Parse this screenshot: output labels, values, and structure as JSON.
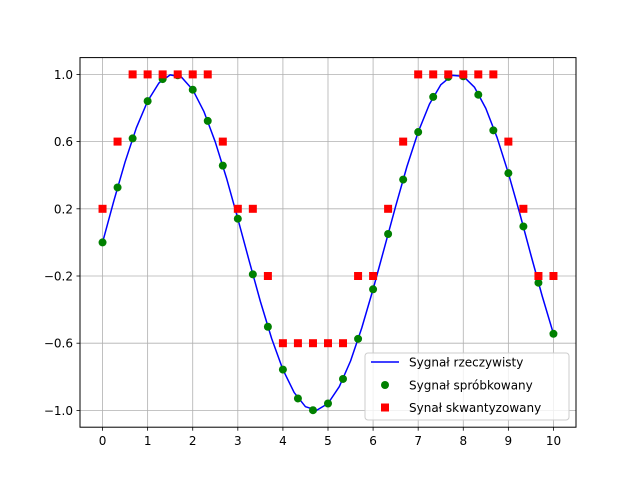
{
  "colors": {
    "line": "#0000ff",
    "sampled": "#008000",
    "quantized": "#ff0000",
    "grid": "#b0b0b0",
    "axes": "#000000"
  },
  "chart_data": {
    "type": "line",
    "xlim": [
      -0.5,
      10.5
    ],
    "ylim": [
      -1.1,
      1.1
    ],
    "xticks": [
      0,
      1,
      2,
      3,
      4,
      5,
      6,
      7,
      8,
      9,
      10
    ],
    "xtick_labels": [
      "0",
      "1",
      "2",
      "3",
      "4",
      "5",
      "6",
      "7",
      "8",
      "9",
      "10"
    ],
    "yticks": [
      1.0,
      0.6,
      0.2,
      -0.2,
      -0.6,
      -1.0
    ],
    "ytick_labels": [
      "1.0",
      "0.6",
      "0.2",
      "−0.2",
      "−0.6",
      "−1.0"
    ],
    "grid": true,
    "legend_position": "lower-right",
    "series": [
      {
        "name": "Sygnał rzeczywisty",
        "kind": "line",
        "x": [
          0,
          0.25,
          0.5,
          0.75,
          1,
          1.25,
          1.5,
          1.75,
          2,
          2.25,
          2.5,
          2.75,
          3,
          3.25,
          3.5,
          3.75,
          4,
          4.25,
          4.5,
          4.75,
          5,
          5.25,
          5.5,
          5.75,
          6,
          6.25,
          6.5,
          6.75,
          7,
          7.25,
          7.5,
          7.75,
          8,
          8.25,
          8.5,
          8.75,
          9,
          9.25,
          9.5,
          9.75,
          10
        ],
        "y": [
          0,
          0.247,
          0.479,
          0.682,
          0.841,
          0.949,
          0.997,
          0.984,
          0.909,
          0.778,
          0.598,
          0.382,
          0.141,
          -0.108,
          -0.351,
          -0.572,
          -0.757,
          -0.894,
          -0.978,
          -0.999,
          -0.959,
          -0.859,
          -0.706,
          -0.508,
          -0.279,
          -0.033,
          0.215,
          0.451,
          0.657,
          0.823,
          0.938,
          0.994,
          0.989,
          0.923,
          0.798,
          0.624,
          0.412,
          0.175,
          -0.075,
          -0.319,
          -0.544
        ]
      },
      {
        "name": "Sygnał spróbkowany",
        "kind": "markers",
        "marker": "circle",
        "x": [
          0,
          0.333,
          0.667,
          1,
          1.333,
          1.667,
          2,
          2.333,
          2.667,
          3,
          3.333,
          3.667,
          4,
          4.333,
          4.667,
          5,
          5.333,
          5.667,
          6,
          6.333,
          6.667,
          7,
          7.333,
          7.667,
          8,
          8.333,
          8.667,
          9,
          9.333,
          9.667,
          10
        ],
        "y": [
          0,
          0.327,
          0.619,
          0.841,
          0.972,
          0.995,
          0.909,
          0.723,
          0.457,
          0.141,
          -0.19,
          -0.502,
          -0.757,
          -0.929,
          -0.999,
          -0.959,
          -0.813,
          -0.574,
          -0.279,
          0.05,
          0.374,
          0.657,
          0.866,
          0.985,
          0.989,
          0.879,
          0.667,
          0.412,
          0.095,
          -0.24,
          -0.544
        ]
      },
      {
        "name": "Synał skwantyzowany",
        "kind": "markers",
        "marker": "square",
        "x": [
          0,
          0.333,
          0.667,
          1,
          1.333,
          1.667,
          2,
          2.333,
          2.667,
          3,
          3.333,
          3.667,
          4,
          4.333,
          4.667,
          5,
          5.333,
          5.667,
          6,
          6.333,
          6.667,
          7,
          7.333,
          7.667,
          8,
          8.333,
          8.667,
          9,
          9.333,
          9.667,
          10
        ],
        "y": [
          0.2,
          0.6,
          1.0,
          1.0,
          1.0,
          1.0,
          1.0,
          1.0,
          0.6,
          0.2,
          0.2,
          -0.2,
          -0.6,
          -0.6,
          -0.6,
          -0.6,
          -0.6,
          -0.2,
          -0.2,
          0.2,
          0.6,
          1.0,
          1.0,
          1.0,
          1.0,
          1.0,
          1.0,
          0.6,
          0.2,
          -0.2,
          -0.2
        ]
      }
    ]
  }
}
